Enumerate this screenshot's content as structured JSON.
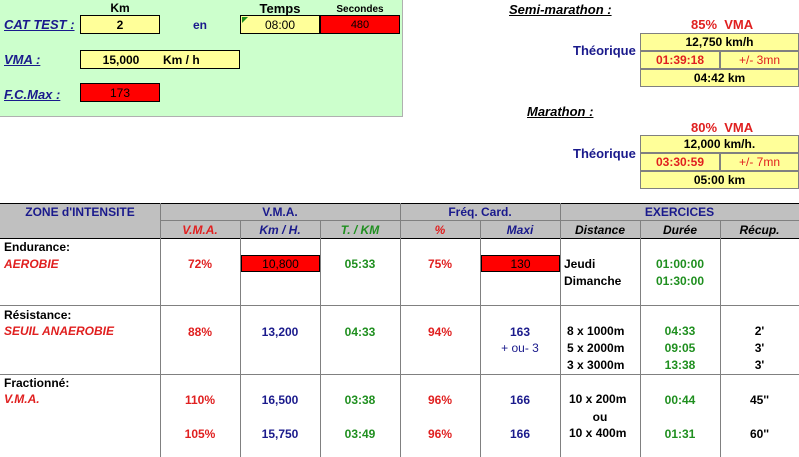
{
  "test": {
    "label": "CAT TEST :",
    "km_header": "Km",
    "km_value": "2",
    "en": "en",
    "temps_header": "Temps",
    "temps_value": "08:00",
    "secondes_header": "Secondes",
    "secondes_value": "480",
    "vma_label": "VMA :",
    "vma_value": "15,000",
    "vma_unit": "Km / h",
    "fcmax_label": "F.C.Max :",
    "fcmax_value": "173"
  },
  "semi": {
    "title": "Semi-marathon :",
    "pct": "85%",
    "pct_label": "VMA",
    "theorique": "Théorique",
    "speed": "12,750 km/h",
    "time": "01:39:18",
    "margin": "+/- 3mn",
    "pace": "04:42 km"
  },
  "marathon": {
    "title": "Marathon :",
    "pct": "80%",
    "pct_label": "VMA",
    "theorique": "Théorique",
    "speed": "12,000 km/h.",
    "time": "03:30:59",
    "margin": "+/- 7mn",
    "pace": "05:00 km"
  },
  "table": {
    "groups": {
      "zone": "ZONE d'INTENSITE",
      "vma": "V.M.A.",
      "freq": "Fréq. Card.",
      "exercices": "EXERCICES"
    },
    "columns": [
      "V.M.A.",
      "Km / H.",
      "T. / KM",
      "%",
      "Maxi",
      "Distance",
      "Durée",
      "Récup."
    ],
    "rows": [
      {
        "category": "Endurance:",
        "zone": "AEROBIE",
        "vma_pct": "72%",
        "kmh": "10,800",
        "t_km": "05:33",
        "fc_pct": "75%",
        "maxi": "130",
        "distances": [
          "Jeudi",
          "Dimanche"
        ],
        "durees": [
          "01:00:00",
          "01:30:00"
        ],
        "recups": []
      },
      {
        "category": "Résistance:",
        "zone": "SEUIL ANAEROBIE",
        "vma_pct": "88%",
        "kmh": "13,200",
        "t_km": "04:33",
        "fc_pct": "94%",
        "maxi": "163",
        "maxi_extra": "+ ou- 3",
        "distances": [
          "8 x 1000m",
          "5 x 2000m",
          "3 x 3000m"
        ],
        "durees": [
          "04:33",
          "09:05",
          "13:38"
        ],
        "recups": [
          "2'",
          "3'",
          "3'"
        ]
      },
      {
        "category": "Fractionné:",
        "zone": "V.M.A.",
        "lines": [
          {
            "vma_pct": "110%",
            "kmh": "16,500",
            "t_km": "03:38",
            "fc_pct": "96%",
            "maxi": "166",
            "distance": "10 x 200m",
            "duree": "00:44",
            "recup": "45''"
          },
          {
            "vma_pct": "105%",
            "kmh": "15,750",
            "t_km": "03:49",
            "fc_pct": "96%",
            "maxi": "166",
            "distance": "10 x 400m",
            "duree": "01:31",
            "recup": "60''"
          }
        ],
        "ou": "ou"
      }
    ]
  }
}
